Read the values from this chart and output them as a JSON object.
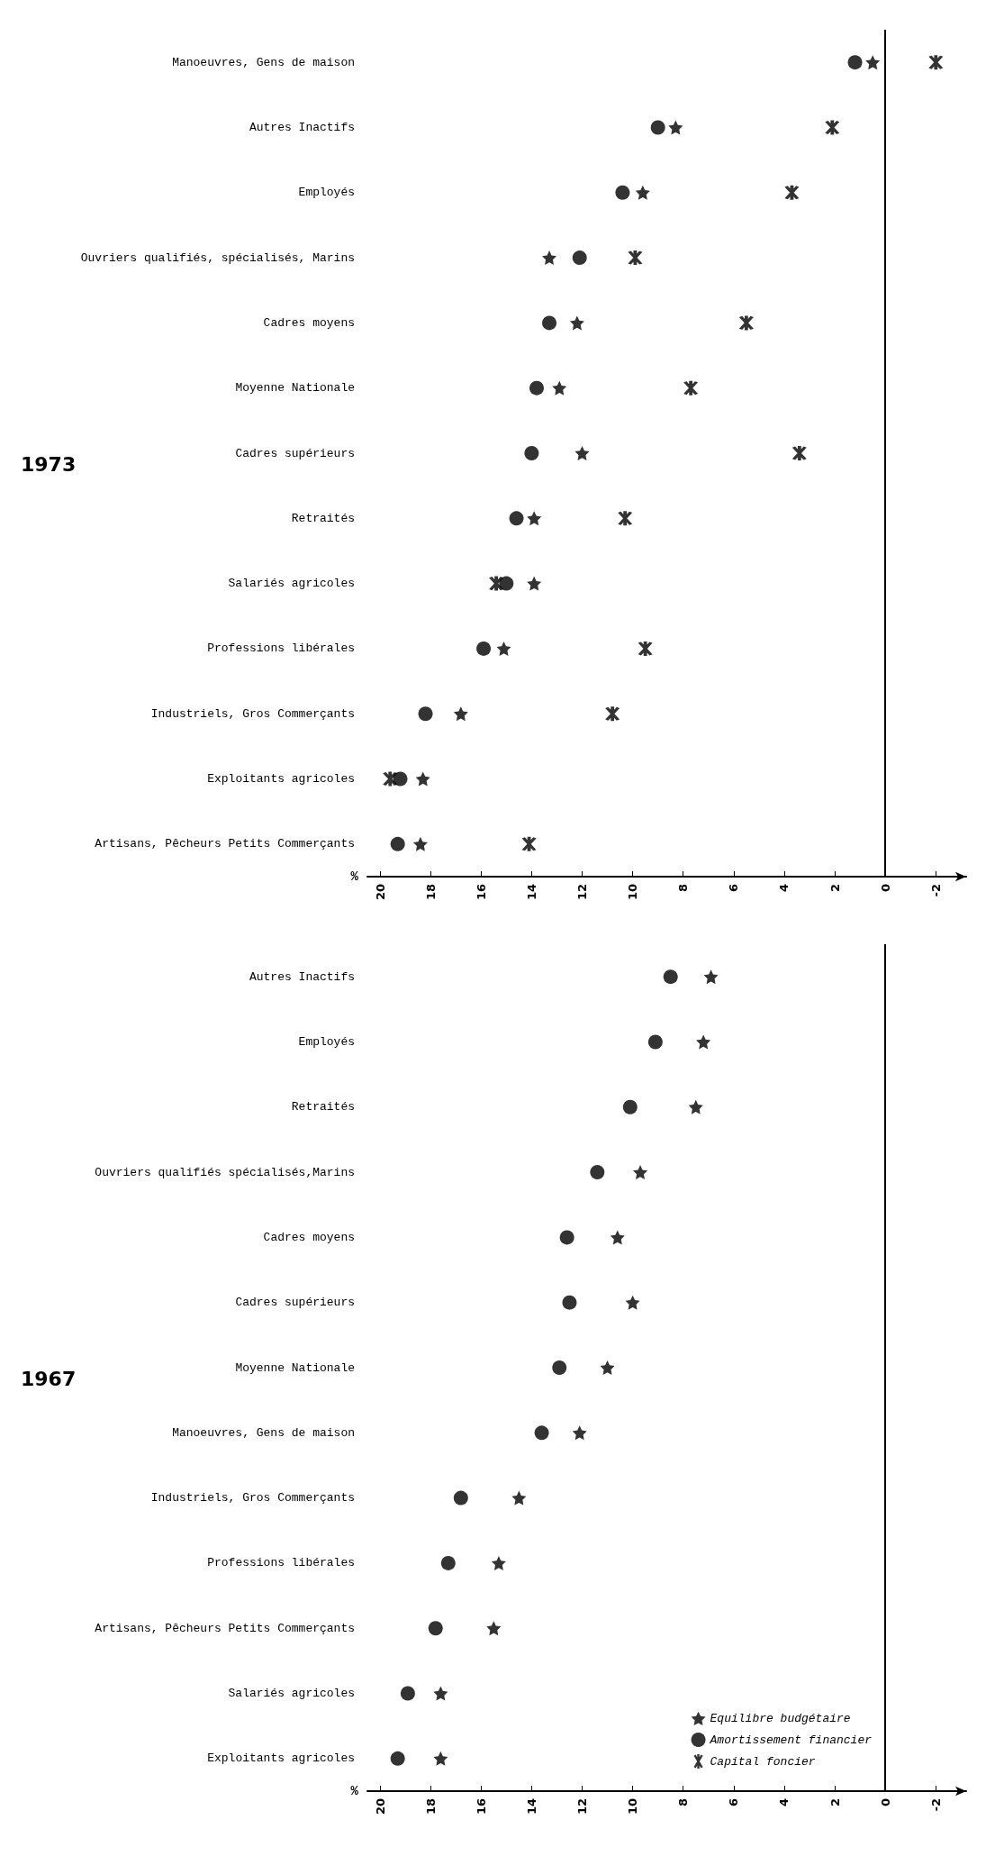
{
  "chart_data": [
    {
      "type": "scatter",
      "title": "1973",
      "xlabel": "%",
      "categories": [
        "Manoeuvres, Gens de maison",
        "Autres Inactifs",
        "Employés",
        "Ouvriers qualifiés, spécialisés, Marins",
        "Cadres moyens",
        "Moyenne Nationale",
        "Cadres supérieurs",
        "Retraités",
        "Salariés agricoles",
        "Professions libérales",
        "Industriels, Gros Commerçants",
        "Exploitants agricoles",
        "Artisans, Pêcheurs Petits Commerçants"
      ],
      "series": [
        {
          "color": "#000000",
          "marker": "star",
          "values": [
            0.5,
            8.3,
            9.6,
            13.3,
            12.2,
            12.9,
            12.0,
            13.9,
            13.9,
            15.1,
            16.8,
            18.3,
            18.4
          ]
        },
        {
          "color": "#000000",
          "marker": "circle",
          "values": [
            1.2,
            9.0,
            10.4,
            12.1,
            13.3,
            13.8,
            14.0,
            14.6,
            15.0,
            15.9,
            18.2,
            19.2,
            19.3
          ]
        },
        {
          "color": "#000000",
          "marker": "cross",
          "values": [
            -2.0,
            2.1,
            3.7,
            9.9,
            5.5,
            7.7,
            3.4,
            10.3,
            15.4,
            9.5,
            10.8,
            19.6,
            14.1
          ]
        }
      ],
      "orientation": "horizontal",
      "xlim": [
        20.5,
        -3.2
      ],
      "xticks": [
        20,
        18,
        16,
        14,
        12,
        10,
        8,
        6,
        4,
        2,
        0,
        -2
      ],
      "ref_lines": [
        {
          "axis": "x",
          "value": 0,
          "color": "#000000"
        }
      ],
      "grid": false,
      "legend": false
    },
    {
      "type": "scatter",
      "title": "1967",
      "xlabel": "%",
      "categories": [
        "Autres Inactifs",
        "Employés",
        "Retraités",
        "Ouvriers qualifiés spécialisés,Marins",
        "Cadres moyens",
        "Cadres supérieurs",
        "Moyenne Nationale",
        "Manoeuvres, Gens de maison",
        "Industriels, Gros Commerçants",
        "Professions libérales",
        "Artisans, Pêcheurs Petits Commerçants",
        "Salariés agricoles",
        "Exploitants agricoles"
      ],
      "series": [
        {
          "name": "Equilibre budgétaire",
          "color": "#000000",
          "marker": "star",
          "values": [
            6.9,
            7.2,
            7.5,
            9.7,
            10.6,
            10.0,
            11.0,
            12.1,
            14.5,
            15.3,
            15.5,
            17.6,
            17.6
          ]
        },
        {
          "name": "Amortissement financier",
          "color": "#000000",
          "marker": "circle",
          "values": [
            8.5,
            9.1,
            10.1,
            11.4,
            12.6,
            12.5,
            12.9,
            13.6,
            16.8,
            17.3,
            17.8,
            18.9,
            19.3
          ]
        },
        {
          "name": "Capital foncier",
          "color": "#000000",
          "marker": "cross",
          "values": [
            null,
            null,
            null,
            null,
            null,
            null,
            null,
            null,
            null,
            null,
            null,
            null,
            null
          ]
        }
      ],
      "orientation": "horizontal",
      "xlim": [
        20.5,
        -3.2
      ],
      "xticks": [
        20,
        18,
        16,
        14,
        12,
        10,
        8,
        6,
        4,
        2,
        0,
        -2
      ],
      "ref_lines": [
        {
          "axis": "x",
          "value": 0,
          "color": "#000000"
        }
      ],
      "grid": false,
      "legend": "right"
    }
  ]
}
